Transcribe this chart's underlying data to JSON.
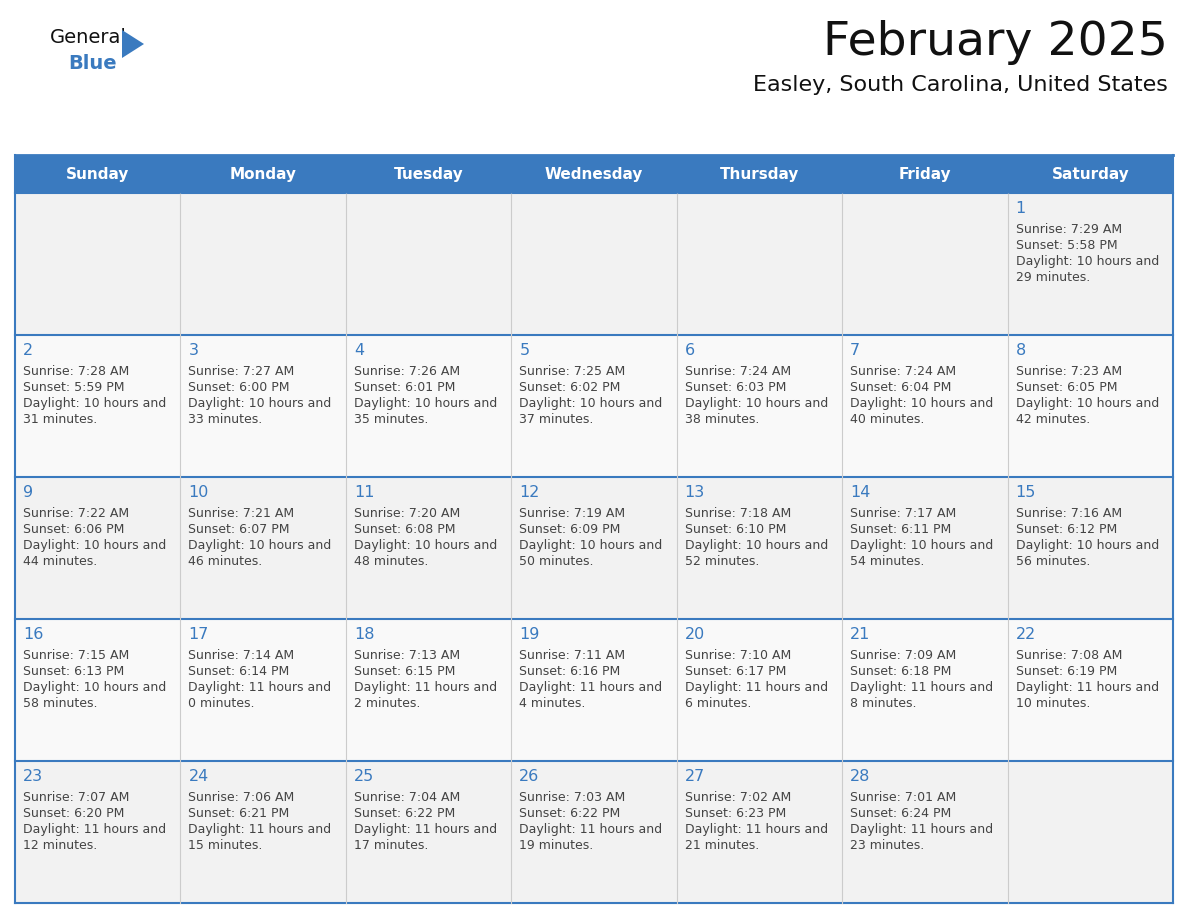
{
  "title": "February 2025",
  "subtitle": "Easley, South Carolina, United States",
  "header_bg_color": "#3a7abf",
  "header_text_color": "#ffffff",
  "cell_bg_even": "#f0f0f0",
  "cell_bg_odd": "#ffffff",
  "border_color": "#3a7abf",
  "day_num_color": "#3a7abf",
  "text_color": "#444444",
  "day_headers": [
    "Sunday",
    "Monday",
    "Tuesday",
    "Wednesday",
    "Thursday",
    "Friday",
    "Saturday"
  ],
  "days": [
    {
      "day": 1,
      "col": 6,
      "row": 0,
      "sunrise": "7:29 AM",
      "sunset": "5:58 PM",
      "daylight": "10 hours and 29 minutes."
    },
    {
      "day": 2,
      "col": 0,
      "row": 1,
      "sunrise": "7:28 AM",
      "sunset": "5:59 PM",
      "daylight": "10 hours and 31 minutes."
    },
    {
      "day": 3,
      "col": 1,
      "row": 1,
      "sunrise": "7:27 AM",
      "sunset": "6:00 PM",
      "daylight": "10 hours and 33 minutes."
    },
    {
      "day": 4,
      "col": 2,
      "row": 1,
      "sunrise": "7:26 AM",
      "sunset": "6:01 PM",
      "daylight": "10 hours and 35 minutes."
    },
    {
      "day": 5,
      "col": 3,
      "row": 1,
      "sunrise": "7:25 AM",
      "sunset": "6:02 PM",
      "daylight": "10 hours and 37 minutes."
    },
    {
      "day": 6,
      "col": 4,
      "row": 1,
      "sunrise": "7:24 AM",
      "sunset": "6:03 PM",
      "daylight": "10 hours and 38 minutes."
    },
    {
      "day": 7,
      "col": 5,
      "row": 1,
      "sunrise": "7:24 AM",
      "sunset": "6:04 PM",
      "daylight": "10 hours and 40 minutes."
    },
    {
      "day": 8,
      "col": 6,
      "row": 1,
      "sunrise": "7:23 AM",
      "sunset": "6:05 PM",
      "daylight": "10 hours and 42 minutes."
    },
    {
      "day": 9,
      "col": 0,
      "row": 2,
      "sunrise": "7:22 AM",
      "sunset": "6:06 PM",
      "daylight": "10 hours and 44 minutes."
    },
    {
      "day": 10,
      "col": 1,
      "row": 2,
      "sunrise": "7:21 AM",
      "sunset": "6:07 PM",
      "daylight": "10 hours and 46 minutes."
    },
    {
      "day": 11,
      "col": 2,
      "row": 2,
      "sunrise": "7:20 AM",
      "sunset": "6:08 PM",
      "daylight": "10 hours and 48 minutes."
    },
    {
      "day": 12,
      "col": 3,
      "row": 2,
      "sunrise": "7:19 AM",
      "sunset": "6:09 PM",
      "daylight": "10 hours and 50 minutes."
    },
    {
      "day": 13,
      "col": 4,
      "row": 2,
      "sunrise": "7:18 AM",
      "sunset": "6:10 PM",
      "daylight": "10 hours and 52 minutes."
    },
    {
      "day": 14,
      "col": 5,
      "row": 2,
      "sunrise": "7:17 AM",
      "sunset": "6:11 PM",
      "daylight": "10 hours and 54 minutes."
    },
    {
      "day": 15,
      "col": 6,
      "row": 2,
      "sunrise": "7:16 AM",
      "sunset": "6:12 PM",
      "daylight": "10 hours and 56 minutes."
    },
    {
      "day": 16,
      "col": 0,
      "row": 3,
      "sunrise": "7:15 AM",
      "sunset": "6:13 PM",
      "daylight": "10 hours and 58 minutes."
    },
    {
      "day": 17,
      "col": 1,
      "row": 3,
      "sunrise": "7:14 AM",
      "sunset": "6:14 PM",
      "daylight": "11 hours and 0 minutes."
    },
    {
      "day": 18,
      "col": 2,
      "row": 3,
      "sunrise": "7:13 AM",
      "sunset": "6:15 PM",
      "daylight": "11 hours and 2 minutes."
    },
    {
      "day": 19,
      "col": 3,
      "row": 3,
      "sunrise": "7:11 AM",
      "sunset": "6:16 PM",
      "daylight": "11 hours and 4 minutes."
    },
    {
      "day": 20,
      "col": 4,
      "row": 3,
      "sunrise": "7:10 AM",
      "sunset": "6:17 PM",
      "daylight": "11 hours and 6 minutes."
    },
    {
      "day": 21,
      "col": 5,
      "row": 3,
      "sunrise": "7:09 AM",
      "sunset": "6:18 PM",
      "daylight": "11 hours and 8 minutes."
    },
    {
      "day": 22,
      "col": 6,
      "row": 3,
      "sunrise": "7:08 AM",
      "sunset": "6:19 PM",
      "daylight": "11 hours and 10 minutes."
    },
    {
      "day": 23,
      "col": 0,
      "row": 4,
      "sunrise": "7:07 AM",
      "sunset": "6:20 PM",
      "daylight": "11 hours and 12 minutes."
    },
    {
      "day": 24,
      "col": 1,
      "row": 4,
      "sunrise": "7:06 AM",
      "sunset": "6:21 PM",
      "daylight": "11 hours and 15 minutes."
    },
    {
      "day": 25,
      "col": 2,
      "row": 4,
      "sunrise": "7:04 AM",
      "sunset": "6:22 PM",
      "daylight": "11 hours and 17 minutes."
    },
    {
      "day": 26,
      "col": 3,
      "row": 4,
      "sunrise": "7:03 AM",
      "sunset": "6:22 PM",
      "daylight": "11 hours and 19 minutes."
    },
    {
      "day": 27,
      "col": 4,
      "row": 4,
      "sunrise": "7:02 AM",
      "sunset": "6:23 PM",
      "daylight": "11 hours and 21 minutes."
    },
    {
      "day": 28,
      "col": 5,
      "row": 4,
      "sunrise": "7:01 AM",
      "sunset": "6:24 PM",
      "daylight": "11 hours and 23 minutes."
    }
  ],
  "num_rows": 5,
  "num_cols": 7
}
